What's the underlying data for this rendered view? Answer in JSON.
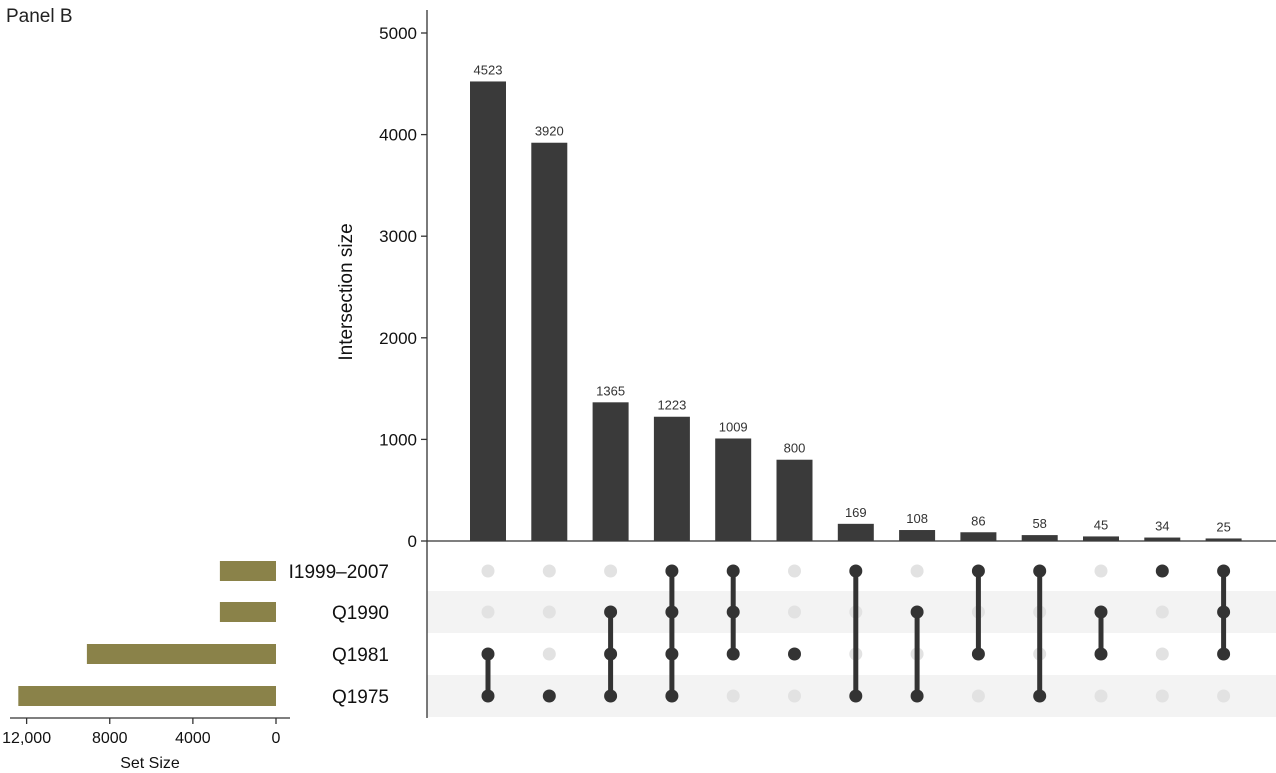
{
  "panel_label": "Panel B",
  "chart_data": {
    "type": "bar",
    "subtype": "upset",
    "ylabel": "Intersection size",
    "ylim": [
      0,
      5200
    ],
    "yticks": [
      0,
      1000,
      2000,
      3000,
      4000,
      5000
    ],
    "intersections": [
      {
        "value": 4523,
        "label": "4523",
        "sets": [
          "Q1981",
          "Q1975"
        ]
      },
      {
        "value": 3920,
        "label": "3920",
        "sets": [
          "Q1975"
        ]
      },
      {
        "value": 1365,
        "label": "1365",
        "sets": [
          "Q1990",
          "Q1981",
          "Q1975"
        ]
      },
      {
        "value": 1223,
        "label": "1223",
        "sets": [
          "I1999–2007",
          "Q1990",
          "Q1981",
          "Q1975"
        ]
      },
      {
        "value": 1009,
        "label": "1009",
        "sets": [
          "I1999–2007",
          "Q1990",
          "Q1981"
        ]
      },
      {
        "value": 800,
        "label": "800",
        "sets": [
          "Q1981"
        ]
      },
      {
        "value": 169,
        "label": "169",
        "sets": [
          "I1999–2007",
          "Q1975"
        ]
      },
      {
        "value": 108,
        "label": "108",
        "sets": [
          "Q1990",
          "Q1975"
        ]
      },
      {
        "value": 86,
        "label": "86",
        "sets": [
          "I1999–2007",
          "Q1981"
        ]
      },
      {
        "value": 58,
        "label": "58",
        "sets": [
          "I1999–2007",
          "Q1975"
        ]
      },
      {
        "value": 45,
        "label": "45",
        "sets": [
          "Q1990",
          "Q1981"
        ]
      },
      {
        "value": 34,
        "label": "34",
        "sets": [
          "I1999–2007"
        ]
      },
      {
        "value": 25,
        "label": "25",
        "sets": [
          "I1999–2007",
          "Q1990",
          "Q1981"
        ]
      }
    ],
    "sets": [
      {
        "name": "I1999–2007",
        "size": 2700
      },
      {
        "name": "Q1990",
        "size": 2700
      },
      {
        "name": "Q1981",
        "size": 9100
      },
      {
        "name": "Q1975",
        "size": 12400
      }
    ],
    "set_size_axis": {
      "xlabel": "Set Size",
      "xlim": [
        0,
        12800
      ],
      "ticks": [
        12000,
        8000,
        4000,
        0
      ],
      "tick_labels": [
        "12,000",
        "8000",
        "4000",
        "0"
      ]
    },
    "colors": {
      "bar": "#3a3a3a",
      "set_bar": "#8a8249",
      "dot_active": "#333333",
      "dot_inactive": "#e2e2e2",
      "stripe": "#f3f3f3"
    }
  }
}
